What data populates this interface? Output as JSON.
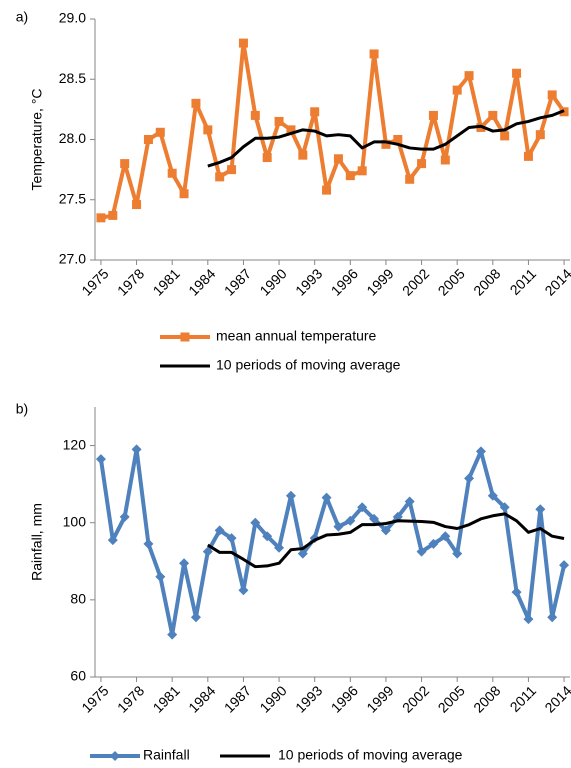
{
  "charts": [
    {
      "type": "line",
      "panel_label": "a)",
      "ylabel": "Temperature, °C",
      "x": [
        1975,
        1976,
        1977,
        1978,
        1979,
        1980,
        1981,
        1982,
        1983,
        1984,
        1985,
        1986,
        1987,
        1988,
        1989,
        1990,
        1991,
        1992,
        1993,
        1994,
        1995,
        1996,
        1997,
        1998,
        1999,
        2000,
        2001,
        2002,
        2003,
        2004,
        2005,
        2006,
        2007,
        2008,
        2009,
        2010,
        2011,
        2012,
        2013,
        2014
      ],
      "xlim": [
        1974.5,
        2014.5
      ],
      "xticks": [
        1975,
        1978,
        1981,
        1984,
        1987,
        1990,
        1993,
        1996,
        1999,
        2002,
        2005,
        2008,
        2011,
        2014
      ],
      "ylim": [
        27,
        29
      ],
      "yticks": [
        {
          "value": 27,
          "label": "27.0"
        },
        {
          "value": 27.5,
          "label": "27.5"
        },
        {
          "value": 28,
          "label": "28.0"
        },
        {
          "value": 28.5,
          "label": "28.5"
        },
        {
          "value": 29,
          "label": "29.0"
        }
      ],
      "series": [
        {
          "name": "mean annual temperature",
          "color": "#ed7d31",
          "marker": "square",
          "values": [
            27.35,
            27.37,
            27.8,
            27.46,
            28.0,
            28.06,
            27.72,
            27.55,
            28.3,
            28.08,
            27.69,
            27.75,
            28.8,
            28.2,
            27.85,
            28.15,
            28.08,
            27.87,
            28.23,
            27.58,
            27.84,
            27.7,
            27.74,
            28.71,
            27.96,
            28.0,
            27.67,
            27.8,
            28.2,
            27.83,
            28.41,
            28.53,
            28.1,
            28.2,
            28.03,
            28.55,
            27.86,
            28.04,
            28.37,
            28.23
          ]
        },
        {
          "name": "10 periods of moving average",
          "color": "#000000",
          "values": [
            null,
            null,
            null,
            null,
            null,
            null,
            null,
            null,
            null,
            27.78,
            27.81,
            27.85,
            27.94,
            28.01,
            28.01,
            28.02,
            28.05,
            28.08,
            28.07,
            28.03,
            28.04,
            28.03,
            27.93,
            27.98,
            27.98,
            27.96,
            27.93,
            27.92,
            27.92,
            27.96,
            28.03,
            28.1,
            28.11,
            28.07,
            28.08,
            28.13,
            28.15,
            28.18,
            28.2,
            28.24
          ]
        }
      ]
    },
    {
      "type": "line",
      "panel_label": "b)",
      "ylabel": "Rainfall, mm",
      "x": [
        1975,
        1976,
        1977,
        1978,
        1979,
        1980,
        1981,
        1982,
        1983,
        1984,
        1985,
        1986,
        1987,
        1988,
        1989,
        1990,
        1991,
        1992,
        1993,
        1994,
        1995,
        1996,
        1997,
        1998,
        1999,
        2000,
        2001,
        2002,
        2003,
        2004,
        2005,
        2006,
        2007,
        2008,
        2009,
        2010,
        2011,
        2012,
        2013,
        2014
      ],
      "xlim": [
        1974.5,
        2014.5
      ],
      "xticks": [
        1975,
        1978,
        1981,
        1984,
        1987,
        1990,
        1993,
        1996,
        1999,
        2002,
        2005,
        2008,
        2011,
        2014
      ],
      "ylim": [
        60,
        130
      ],
      "yticks": [
        60,
        80,
        100,
        120
      ],
      "series": [
        {
          "name": "Rainfall",
          "color": "#4f81bd",
          "marker": "diamond",
          "values": [
            116.5,
            95.5,
            101.5,
            119,
            94.5,
            86,
            71,
            89.5,
            75.5,
            92.5,
            98,
            96,
            82.5,
            100,
            96.5,
            93.5,
            107,
            92,
            96,
            106.5,
            99,
            100.5,
            104,
            101,
            98,
            101.5,
            105.5,
            92.5,
            94.5,
            96.5,
            92,
            111.5,
            118.5,
            107,
            104,
            82,
            75,
            103.5,
            75.5,
            89
          ]
        },
        {
          "name": "10 periods of moving average",
          "color": "#000000",
          "values": [
            null,
            null,
            null,
            null,
            null,
            null,
            null,
            null,
            null,
            94.2,
            92.3,
            92.3,
            90.5,
            88.6,
            88.8,
            89.5,
            93.0,
            93.3,
            95.5,
            96.8,
            97.0,
            97.5,
            99.5,
            99.5,
            99.8,
            100.5,
            100.4,
            100.3,
            100.1,
            99.0,
            98.5,
            99.5,
            101.0,
            101.8,
            102.3,
            100.5,
            97.5,
            98.5,
            96.5,
            95.9
          ]
        }
      ]
    }
  ]
}
